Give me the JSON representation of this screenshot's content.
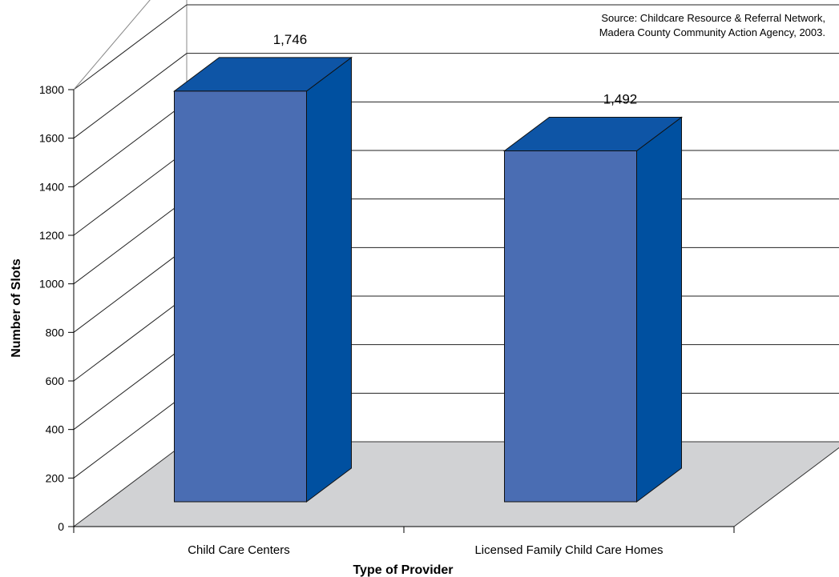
{
  "chart_data": {
    "type": "bar",
    "categories": [
      "Child Care Centers",
      "Licensed Family Child Care Homes"
    ],
    "values": [
      1746,
      1492
    ],
    "data_labels": [
      "1,746",
      "1,492"
    ],
    "xlabel": "Type of Provider",
    "ylabel": "Number of Slots",
    "ylim": [
      0,
      1800
    ],
    "yticks": [
      0,
      200,
      400,
      600,
      800,
      1000,
      1200,
      1400,
      1600,
      1800
    ],
    "grid": true,
    "three_d": true,
    "source_lines": [
      "Source: Childcare Resource & Referral Network,",
      "Madera County Community Action Agency, 2003."
    ],
    "colors": {
      "bar_front": "#4a6db3",
      "bar_top": "#0e55a6",
      "bar_side": "#0050a0",
      "floor": "#d1d2d4"
    }
  }
}
